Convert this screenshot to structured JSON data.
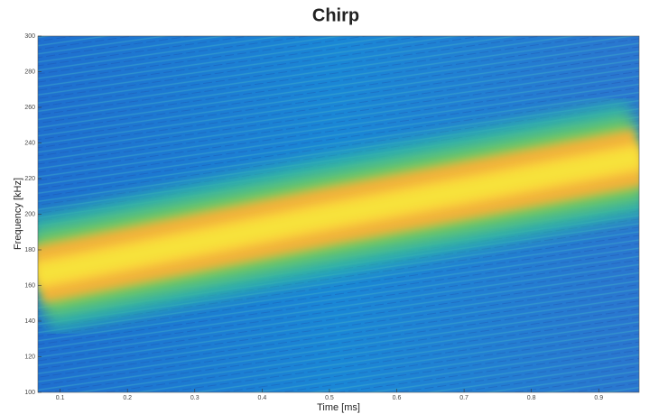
{
  "chart_data": {
    "type": "spectrogram",
    "title": "Chirp",
    "xlabel": "Time [ms]",
    "ylabel": "Frequency [kHz]",
    "x": [
      0.067,
      0.5,
      0.96
    ],
    "values": [
      166,
      199,
      232
    ],
    "color": "#f7e23a",
    "xlim": [
      0.067,
      0.96
    ],
    "ylim": [
      100,
      300
    ],
    "xticks": [
      0.1,
      0.2,
      0.3,
      0.4,
      0.5,
      0.6,
      0.7,
      0.8,
      0.9
    ],
    "yticks": [
      100,
      120,
      140,
      160,
      180,
      200,
      220,
      240,
      260,
      280,
      300
    ]
  }
}
